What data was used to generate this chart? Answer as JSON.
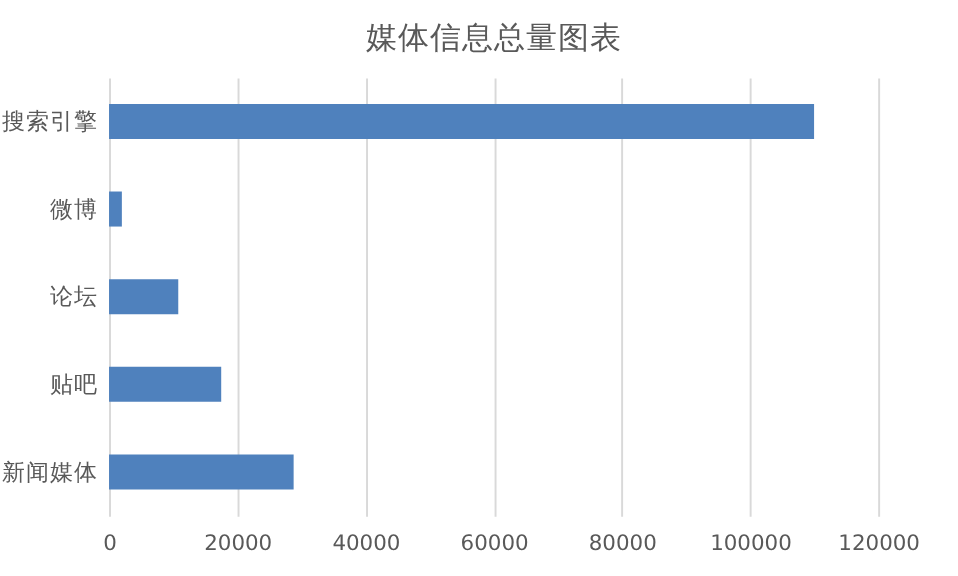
{
  "chart_data": {
    "type": "bar",
    "orientation": "horizontal",
    "title": "媒体信息总量图表",
    "categories": [
      "搜索引擎",
      "微博",
      "论坛",
      "贴吧",
      "新闻媒体"
    ],
    "values": [
      110000,
      2000,
      10800,
      17500,
      28800
    ],
    "color": "#4f81bd",
    "xlim": [
      0,
      120000
    ],
    "xticks": [
      0,
      20000,
      40000,
      60000,
      80000,
      100000,
      120000
    ],
    "grid": "x"
  }
}
